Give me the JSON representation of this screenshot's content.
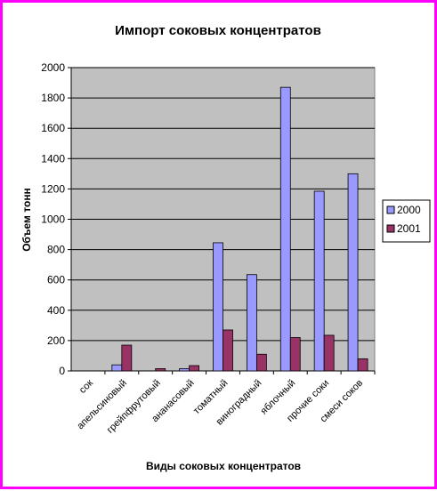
{
  "chart_data": {
    "type": "bar",
    "title": "Импорт соковых концентратов",
    "xlabel": "Виды соковых концентратов",
    "ylabel": "Объем тонн",
    "ylim": [
      0,
      2000
    ],
    "yticks": [
      0,
      200,
      400,
      600,
      800,
      1000,
      1200,
      1400,
      1600,
      1800,
      2000
    ],
    "categories": [
      "сок",
      "апельсиновый",
      "грейпфрутовый",
      "ананасовый",
      "томатный",
      "виноградный",
      "яблочный",
      "прочие соки",
      "смеси соков"
    ],
    "series": [
      {
        "name": "2000",
        "color": "#9999ff",
        "values": [
          0,
          40,
          0,
          15,
          845,
          635,
          1870,
          1185,
          1300
        ]
      },
      {
        "name": "2001",
        "color": "#993366",
        "values": [
          0,
          170,
          15,
          35,
          270,
          110,
          220,
          235,
          80
        ]
      }
    ],
    "grid": true,
    "legend": "right",
    "plot_background": "#c0c0c0"
  }
}
